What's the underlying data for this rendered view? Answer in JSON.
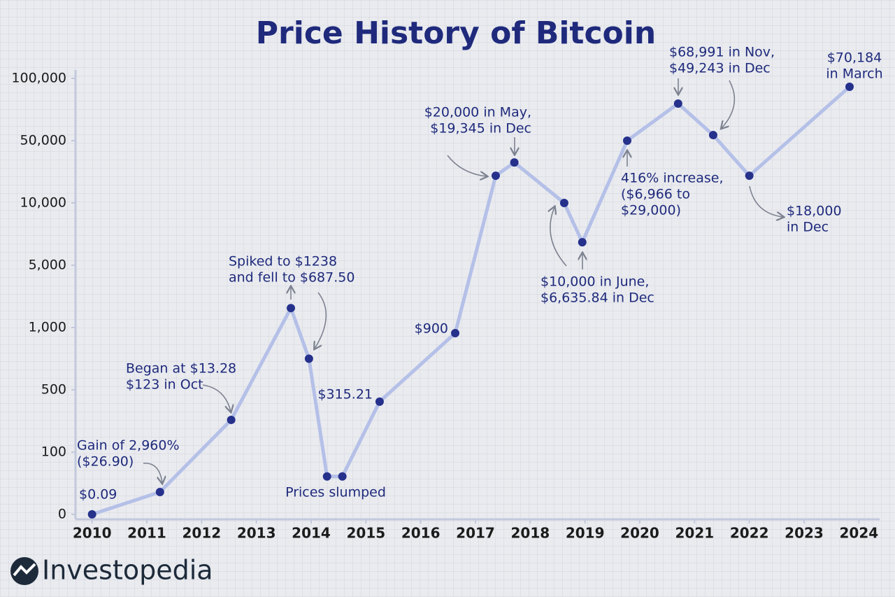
{
  "chart_data": {
    "type": "line",
    "title": "Price History of Bitcoin",
    "x": [
      2010.0,
      2011.24,
      2012.54,
      2013.63,
      2013.96,
      2014.29,
      2014.57,
      2015.25,
      2016.63,
      2017.37,
      2017.71,
      2018.62,
      2018.95,
      2019.77,
      2020.7,
      2021.34,
      2022.0,
      2023.83
    ],
    "values": [
      0.09,
      36,
      307,
      2250,
      750,
      61,
      61,
      424,
      955,
      27500,
      36000,
      10000,
      6850,
      50000,
      79800,
      54500,
      27500,
      93250
    ],
    "color": "#b5c0e8",
    "marker_color": "#26318c",
    "xlim": [
      2009.8,
      2024.2
    ],
    "xticks": [
      2010,
      2011,
      2012,
      2013,
      2014,
      2015,
      2016,
      2017,
      2018,
      2019,
      2020,
      2021,
      2022,
      2023,
      2024
    ],
    "ylim": [
      0,
      100000
    ],
    "y_scale": "piecewise",
    "yticks": [
      0,
      100,
      500,
      {
        "value": 1000,
        "label": "1,000"
      },
      {
        "value": 5000,
        "label": "5,000"
      },
      {
        "value": 10000,
        "label": "10,000"
      },
      {
        "value": 50000,
        "label": "50,000"
      },
      {
        "value": 100000,
        "label": "100,000"
      }
    ],
    "annotations": [
      {
        "lines": [
          "$0.09"
        ]
      },
      {
        "lines": [
          "Gain of 2,960%",
          "($26.90)"
        ]
      },
      {
        "lines": [
          "Began at $13.28",
          "$123 in Oct"
        ]
      },
      {
        "lines": [
          "Spiked to $1238",
          "and fell to $687.50"
        ]
      },
      {
        "lines": [
          "Prices slumped"
        ]
      },
      {
        "lines": [
          "$315.21"
        ]
      },
      {
        "lines": [
          "$900"
        ]
      },
      {
        "lines": [
          "$20,000 in May,",
          "$19,345 in Dec"
        ]
      },
      {
        "lines": [
          "$10,000 in June,",
          "$6,635.84 in Dec"
        ]
      },
      {
        "lines": [
          "416% increase,",
          "($6,966 to",
          "$29,000)"
        ]
      },
      {
        "lines": [
          "$68,991 in Nov,",
          "$49,243 in Dec"
        ]
      },
      {
        "lines": [
          "$70,184",
          "in March"
        ]
      },
      {
        "lines": [
          "$18,000",
          "in Dec"
        ]
      }
    ]
  },
  "brand": "Investopedia"
}
